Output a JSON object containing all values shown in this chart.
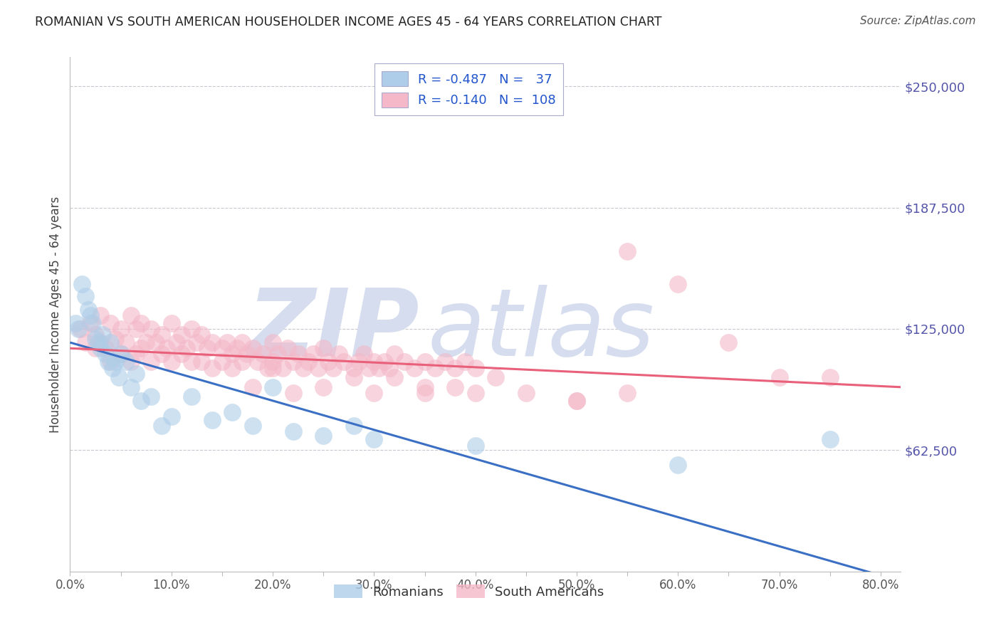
{
  "title": "ROMANIAN VS SOUTH AMERICAN HOUSEHOLDER INCOME AGES 45 - 64 YEARS CORRELATION CHART",
  "source": "Source: ZipAtlas.com",
  "ylabel": "Householder Income Ages 45 - 64 years",
  "ytick_labels": [
    "$250,000",
    "$187,500",
    "$125,000",
    "$62,500"
  ],
  "ytick_values": [
    250000,
    187500,
    125000,
    62500
  ],
  "xtick_labels": [
    "0.0%",
    "",
    "10.0%",
    "",
    "20.0%",
    "",
    "30.0%",
    "",
    "40.0%",
    "",
    "50.0%",
    "",
    "60.0%",
    "",
    "70.0%",
    "",
    "80.0%"
  ],
  "xtick_values": [
    0.0,
    0.05,
    0.1,
    0.15,
    0.2,
    0.25,
    0.3,
    0.35,
    0.4,
    0.45,
    0.5,
    0.55,
    0.6,
    0.65,
    0.7,
    0.75,
    0.8
  ],
  "xlim": [
    0.0,
    0.82
  ],
  "ylim": [
    0,
    265000
  ],
  "romanian_color": "#aecde8",
  "romanian_edge_color": "#aecde8",
  "south_american_color": "#f4b8c8",
  "south_american_edge_color": "#f4b8c8",
  "trendline_romanian_color": "#3a6fc4",
  "trendline_sa_color": "#e8607a",
  "romanian_R": -0.487,
  "romanian_N": 37,
  "south_american_R": -0.14,
  "south_american_N": 108,
  "background_color": "#ffffff",
  "grid_color": "#c8c8d0",
  "axis_tick_color": "#5555aa",
  "title_color": "#222222",
  "source_color": "#555555",
  "watermark_color": "#d5ddef",
  "legend_label_romanian": "Romanians",
  "legend_label_south_american": "South Americans",
  "rom_x": [
    0.005,
    0.008,
    0.012,
    0.015,
    0.018,
    0.02,
    0.022,
    0.025,
    0.028,
    0.03,
    0.032,
    0.035,
    0.038,
    0.04,
    0.042,
    0.045,
    0.048,
    0.05,
    0.055,
    0.06,
    0.065,
    0.07,
    0.08,
    0.09,
    0.1,
    0.12,
    0.14,
    0.16,
    0.18,
    0.2,
    0.22,
    0.25,
    0.28,
    0.3,
    0.4,
    0.6,
    0.75
  ],
  "rom_y": [
    128000,
    125000,
    148000,
    142000,
    135000,
    132000,
    128000,
    120000,
    118000,
    115000,
    122000,
    112000,
    108000,
    118000,
    105000,
    108000,
    100000,
    112000,
    108000,
    95000,
    102000,
    88000,
    90000,
    75000,
    80000,
    90000,
    78000,
    82000,
    75000,
    95000,
    72000,
    70000,
    75000,
    68000,
    65000,
    55000,
    68000
  ],
  "sa_x": [
    0.01,
    0.015,
    0.02,
    0.025,
    0.025,
    0.03,
    0.03,
    0.035,
    0.04,
    0.04,
    0.045,
    0.05,
    0.05,
    0.055,
    0.06,
    0.06,
    0.065,
    0.065,
    0.07,
    0.07,
    0.075,
    0.08,
    0.08,
    0.085,
    0.09,
    0.09,
    0.095,
    0.1,
    0.1,
    0.105,
    0.11,
    0.11,
    0.115,
    0.12,
    0.12,
    0.125,
    0.13,
    0.13,
    0.135,
    0.14,
    0.14,
    0.15,
    0.15,
    0.155,
    0.16,
    0.16,
    0.165,
    0.17,
    0.17,
    0.175,
    0.18,
    0.185,
    0.19,
    0.195,
    0.2,
    0.2,
    0.205,
    0.21,
    0.215,
    0.22,
    0.225,
    0.23,
    0.235,
    0.24,
    0.245,
    0.25,
    0.255,
    0.26,
    0.265,
    0.27,
    0.28,
    0.285,
    0.29,
    0.295,
    0.3,
    0.305,
    0.31,
    0.315,
    0.32,
    0.33,
    0.34,
    0.35,
    0.36,
    0.37,
    0.38,
    0.39,
    0.4,
    0.35,
    0.3,
    0.28,
    0.25,
    0.22,
    0.2,
    0.18,
    0.32,
    0.35,
    0.38,
    0.42,
    0.45,
    0.5,
    0.55,
    0.6,
    0.65,
    0.7,
    0.4,
    0.5,
    0.55,
    0.75
  ],
  "sa_y": [
    125000,
    118000,
    128000,
    122000,
    115000,
    132000,
    118000,
    115000,
    128000,
    108000,
    120000,
    125000,
    112000,
    118000,
    132000,
    108000,
    125000,
    112000,
    128000,
    115000,
    118000,
    125000,
    108000,
    118000,
    122000,
    112000,
    115000,
    128000,
    108000,
    118000,
    122000,
    112000,
    115000,
    125000,
    108000,
    118000,
    122000,
    108000,
    115000,
    118000,
    105000,
    115000,
    108000,
    118000,
    112000,
    105000,
    115000,
    108000,
    118000,
    112000,
    115000,
    108000,
    112000,
    105000,
    118000,
    108000,
    112000,
    105000,
    115000,
    108000,
    112000,
    105000,
    108000,
    112000,
    105000,
    115000,
    108000,
    105000,
    112000,
    108000,
    105000,
    108000,
    112000,
    105000,
    108000,
    105000,
    108000,
    105000,
    112000,
    108000,
    105000,
    108000,
    105000,
    108000,
    105000,
    108000,
    105000,
    95000,
    92000,
    100000,
    95000,
    92000,
    105000,
    95000,
    100000,
    92000,
    95000,
    100000,
    92000,
    88000,
    165000,
    148000,
    118000,
    100000,
    92000,
    88000,
    92000,
    100000
  ]
}
